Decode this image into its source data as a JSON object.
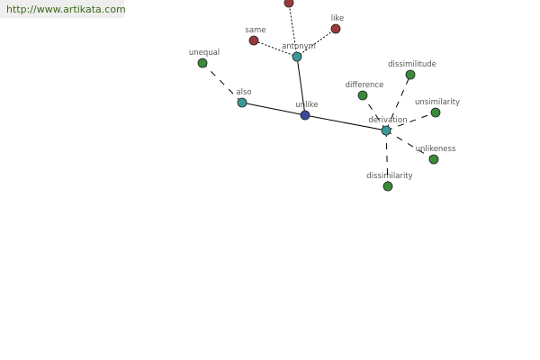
{
  "site_link": "http://www.artikata.com",
  "colors": {
    "center": "#3a4a9a",
    "relation": "#3a9a9a",
    "antonym_word": "#9a3a3a",
    "related_word": "#3a8a3a"
  },
  "graph": {
    "nodes": [
      {
        "id": "unlike",
        "label": "unlike",
        "kind": "center"
      },
      {
        "id": "antonym",
        "label": "antonym",
        "kind": "relation"
      },
      {
        "id": "also",
        "label": "also",
        "kind": "relation"
      },
      {
        "id": "derivation",
        "label": "derivation",
        "kind": "relation"
      },
      {
        "id": "top",
        "label": "",
        "kind": "antonym_word"
      },
      {
        "id": "same",
        "label": "same",
        "kind": "antonym_word"
      },
      {
        "id": "like",
        "label": "like",
        "kind": "antonym_word"
      },
      {
        "id": "unequal",
        "label": "unequal",
        "kind": "related_word"
      },
      {
        "id": "difference",
        "label": "difference",
        "kind": "related_word"
      },
      {
        "id": "dissimilitude",
        "label": "dissimilitude",
        "kind": "related_word"
      },
      {
        "id": "unsimilarity",
        "label": "unsimilarity",
        "kind": "related_word"
      },
      {
        "id": "unlikeness",
        "label": "unlikeness",
        "kind": "related_word"
      },
      {
        "id": "dissimilarity",
        "label": "dissimilarity",
        "kind": "related_word"
      }
    ],
    "edges": [
      {
        "from": "unlike",
        "to": "antonym",
        "style": "solid"
      },
      {
        "from": "unlike",
        "to": "also",
        "style": "solid"
      },
      {
        "from": "unlike",
        "to": "derivation",
        "style": "solid"
      },
      {
        "from": "antonym",
        "to": "top",
        "style": "dotted"
      },
      {
        "from": "antonym",
        "to": "same",
        "style": "dotted"
      },
      {
        "from": "antonym",
        "to": "like",
        "style": "dotted"
      },
      {
        "from": "also",
        "to": "unequal",
        "style": "dashed"
      },
      {
        "from": "derivation",
        "to": "difference",
        "style": "dashed"
      },
      {
        "from": "derivation",
        "to": "dissimilitude",
        "style": "dashed"
      },
      {
        "from": "derivation",
        "to": "unsimilarity",
        "style": "dashed"
      },
      {
        "from": "derivation",
        "to": "unlikeness",
        "style": "dashed"
      },
      {
        "from": "derivation",
        "to": "dissimilarity",
        "style": "dashed"
      }
    ]
  }
}
